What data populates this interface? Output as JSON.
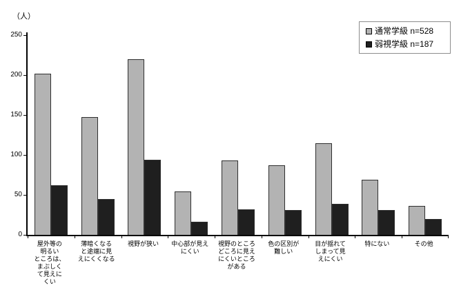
{
  "chart_data": {
    "type": "bar",
    "title": "",
    "xlabel": "",
    "ylabel": "（人）",
    "ylim": [
      0,
      250
    ],
    "yticks": [
      0,
      50,
      100,
      150,
      200,
      250
    ],
    "grid": false,
    "legend_position": "top-right",
    "categories": [
      "屋外等の\n明るい\nところは、\nまぶしく\nて見えに\nくい",
      "薄暗くなる\nと途端に見\nえにくくなる",
      "視野が狭い",
      "中心部が見え\nにくい",
      "視野のところ\nどころに見え\nにくいところ\nがある",
      "色の区別が\n難しい",
      "目が揺れて\nしまって見\nえにくい",
      "特にない",
      "その他"
    ],
    "series": [
      {
        "name": "通常学級  n=528",
        "color": "#b3b3b3",
        "values": [
          202,
          147,
          220,
          54,
          93,
          87,
          115,
          69,
          36
        ]
      },
      {
        "name": "弱視学級  n=187",
        "color": "#1f1f1f",
        "values": [
          62,
          45,
          94,
          16,
          32,
          31,
          39,
          31,
          20
        ]
      }
    ]
  }
}
